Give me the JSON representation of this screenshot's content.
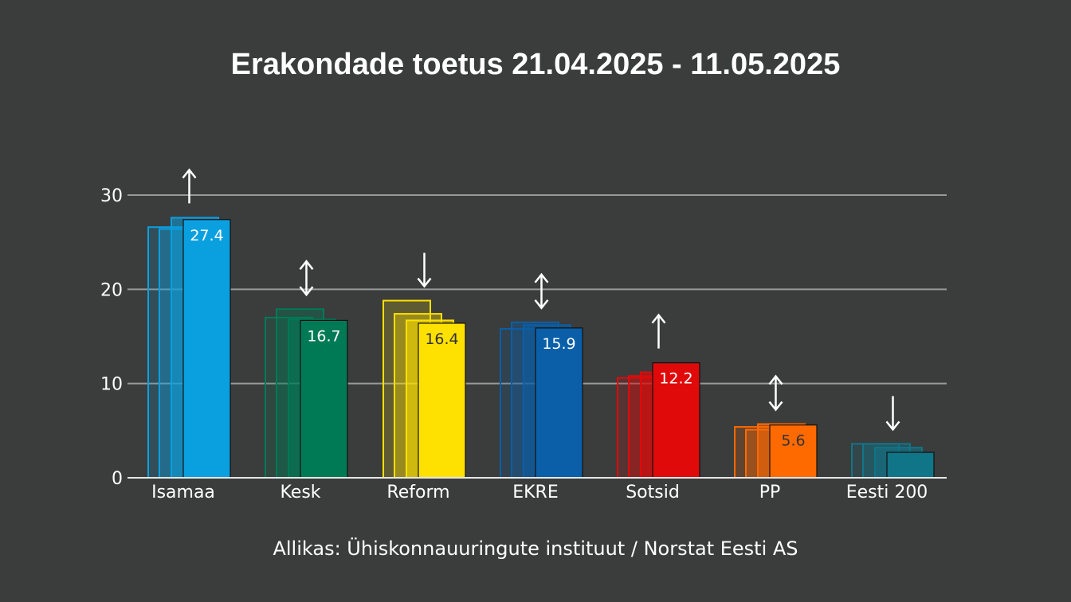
{
  "title": "Erakondade toetus 21.04.2025 - 11.05.2025",
  "source": "Allikas: Ühiskonnauuringute instituut / Norstat Eesti AS",
  "chart_data": {
    "type": "bar",
    "categories": [
      "Isamaa",
      "Kesk",
      "Reform",
      "EKRE",
      "Sotsid",
      "PP",
      "Eesti 200"
    ],
    "colors": [
      "#0aa0e0",
      "#007a55",
      "#ffe100",
      "#0a5fa8",
      "#e00a0a",
      "#ff6a00",
      "#117588"
    ],
    "label_colors": [
      "#ffffff",
      "#ffffff",
      "#333333",
      "#ffffff",
      "#ffffff",
      "#333333",
      "#ffffff"
    ],
    "series": [
      {
        "values": [
          26.6,
          17.0,
          18.8,
          15.8,
          10.6,
          5.4,
          3.6
        ]
      },
      {
        "values": [
          26.4,
          17.9,
          17.4,
          16.5,
          10.8,
          5.1,
          3.6
        ]
      },
      {
        "values": [
          27.6,
          16.8,
          16.7,
          16.2,
          11.2,
          5.7,
          3.2
        ]
      },
      {
        "values": [
          27.4,
          16.7,
          16.4,
          15.9,
          12.2,
          5.6,
          2.7
        ]
      }
    ],
    "data_labels": [
      "27.4",
      "16.7",
      "16.4",
      "15.9",
      "12.2",
      "5.6",
      ""
    ],
    "trend": [
      "up",
      "both",
      "down",
      "both",
      "up",
      "both",
      "down"
    ],
    "ylim": [
      0,
      30
    ],
    "yticks": [
      "0",
      "10",
      "20",
      "30"
    ],
    "grid": true
  }
}
